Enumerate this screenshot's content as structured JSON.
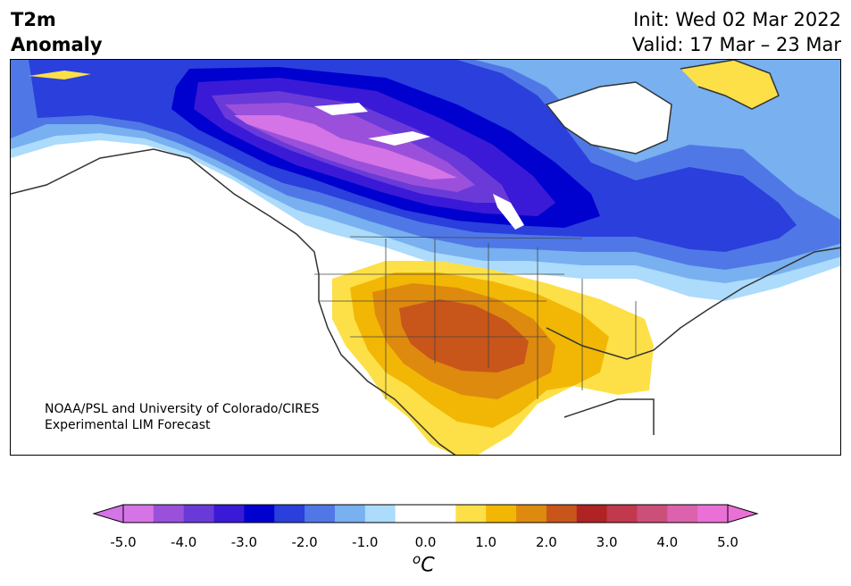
{
  "title": {
    "line1": "T2m",
    "line2": "Anomaly"
  },
  "init": "Init: Wed 02 Mar 2022",
  "valid": "Valid: 17 Mar – 23 Mar",
  "credit": {
    "line1": "NOAA/PSL and University of Colorado/CIRES",
    "line2": "Experimental LIM Forecast"
  },
  "colorbar": {
    "ticks": [
      "-5.0",
      "-4.0",
      "-3.0",
      "-2.0",
      "-1.0",
      "0.0",
      "1.0",
      "2.0",
      "3.0",
      "4.0",
      "5.0"
    ],
    "unit_sup": "o",
    "unit": "C",
    "colors": [
      "#d474e6",
      "#9b50dc",
      "#6a3ad8",
      "#3a1ad6",
      "#0000cf",
      "#2a3fdc",
      "#4f78e6",
      "#78b0f0",
      "#acdbfb",
      "#ffffff",
      "#ffffff",
      "#fde047",
      "#f2b705",
      "#de8a0e",
      "#c8561a",
      "#b02325",
      "#c2394d",
      "#cc4f7a",
      "#dc62ad",
      "#ea70d6"
    ],
    "under_color": "#d474e6",
    "over_color": "#ea70d6"
  }
}
